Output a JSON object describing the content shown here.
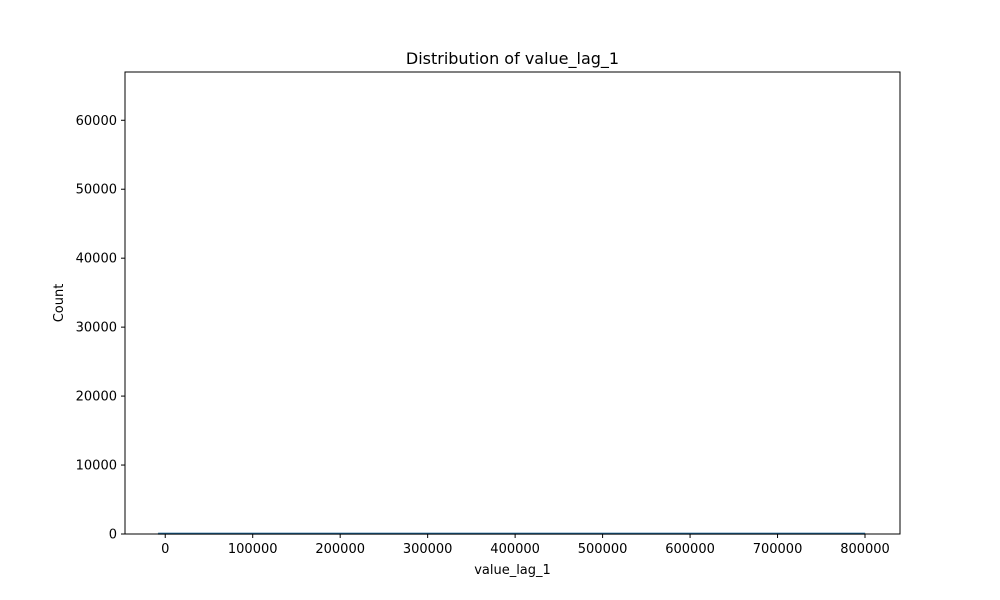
{
  "chart_data": {
    "type": "bar",
    "title": "Distribution of value_lag_1",
    "xlabel": "value_lag_1",
    "ylabel": "Count",
    "xlim": [
      -46000,
      840000
    ],
    "ylim": [
      0,
      67000
    ],
    "xticks": [
      0,
      100000,
      200000,
      300000,
      400000,
      500000,
      600000,
      700000,
      800000
    ],
    "yticks": [
      0,
      10000,
      20000,
      30000,
      40000,
      50000,
      60000
    ],
    "grid": false,
    "legend": "none",
    "colors": {
      "bars": "#1f77b4",
      "kde": "#1f77b4",
      "axes": "#000000"
    },
    "bins": [
      {
        "x0": -8000,
        "x1": 800000,
        "count": 0
      }
    ],
    "kde": {
      "x": [
        -8000,
        800000
      ],
      "y": [
        0,
        0
      ]
    }
  }
}
